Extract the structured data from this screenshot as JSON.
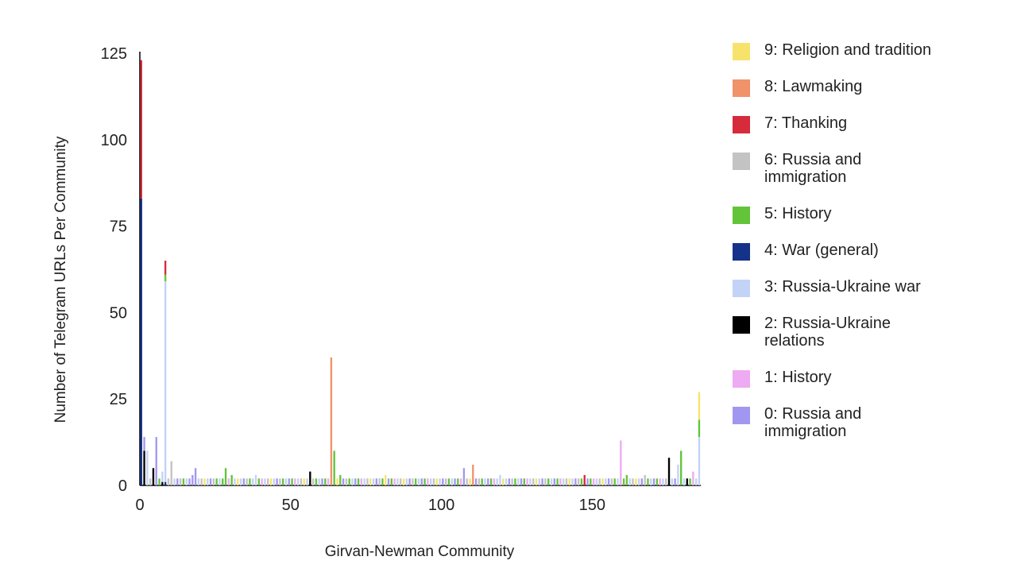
{
  "chart_data": {
    "type": "bar",
    "stacked": true,
    "title": "",
    "xlabel": "Girvan-Newman Community",
    "ylabel": "Number of Telegram URLs Per Community",
    "xlim": [
      0,
      186
    ],
    "ylim": [
      0,
      125
    ],
    "x_ticks": [
      "0",
      "50",
      "100",
      "150"
    ],
    "y_ticks": [
      "0",
      "25",
      "50",
      "75",
      "100",
      "125"
    ],
    "legend_position": "right",
    "legend": [
      {
        "key": "9",
        "label": "9: Religion and tradition",
        "color": "#f7e36b"
      },
      {
        "key": "8",
        "label": "8: Lawmaking",
        "color": "#f0926a"
      },
      {
        "key": "7",
        "label": "7: Thanking",
        "color": "#d62b3a"
      },
      {
        "key": "6",
        "label": "6: Russia and\nimmigration",
        "color": "#c3c3c3"
      },
      {
        "key": "5",
        "label": "5: History",
        "color": "#63c43a"
      },
      {
        "key": "4",
        "label": "4: War (general)",
        "color": "#143289"
      },
      {
        "key": "3",
        "label": "3: Russia-Ukraine war",
        "color": "#c3d2f7"
      },
      {
        "key": "2",
        "label": "2: Russia-Ukraine\nrelations",
        "color": "#000000"
      },
      {
        "key": "1",
        "label": "1: History",
        "color": "#eeaaf2"
      },
      {
        "key": "0",
        "label": "0: Russia and\nimmigration",
        "color": "#a297f0"
      }
    ],
    "default_value": 2,
    "default_cycle": [
      "3",
      "0",
      "6",
      "5",
      "3",
      "0",
      "5",
      "1",
      "3",
      "6",
      "9"
    ],
    "bars": {
      "0": {
        "4": 83,
        "7": 40
      },
      "1": {
        "2": 10,
        "0": 4
      },
      "2": {
        "3": 10
      },
      "3": {
        "6": 2
      },
      "4": {
        "2": 5
      },
      "5": {
        "0": 14
      },
      "7": {
        "3": 3,
        "2": 1
      },
      "8": {
        "3": 58,
        "4": 1,
        "5": 2,
        "7": 4
      },
      "10": {
        "6": 7
      },
      "17": {
        "0": 3
      },
      "18": {
        "0": 5
      },
      "27": {
        "5": 2
      },
      "28": {
        "5": 5
      },
      "30": {
        "5": 3
      },
      "31": {
        "3": 2
      },
      "38": {
        "3": 3
      },
      "56": {
        "2": 4
      },
      "63": {
        "8": 37
      },
      "64": {
        "5": 10
      },
      "66": {
        "5": 3
      },
      "81": {
        "9": 3
      },
      "107": {
        "0": 5
      },
      "110": {
        "8": 6
      },
      "119": {
        "3": 3
      },
      "147": {
        "7": 3
      },
      "159": {
        "1": 13
      },
      "161": {
        "5": 3
      },
      "167": {
        "6": 3
      },
      "175": {
        "2": 8
      },
      "178": {
        "3": 6
      },
      "179": {
        "5": 10
      },
      "181": {
        "2": 2
      },
      "183": {
        "1": 4
      },
      "185": {
        "3": 14,
        "5": 5,
        "9": 8
      }
    }
  }
}
